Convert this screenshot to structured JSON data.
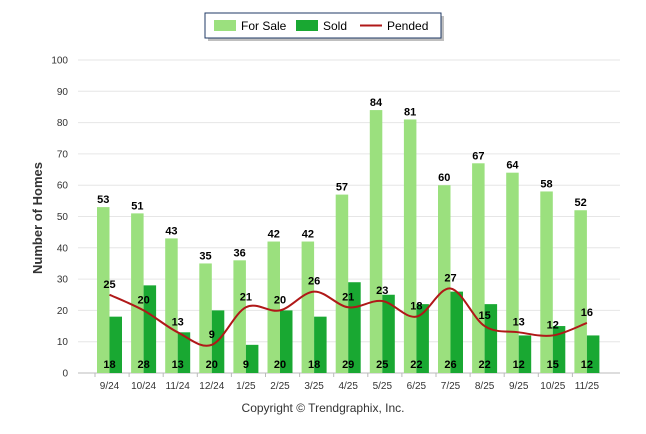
{
  "chart_data": {
    "type": "bar",
    "title": "",
    "xlabel": "",
    "ylabel": "Number of Homes",
    "ylim": [
      0,
      100
    ],
    "yticks": [
      0,
      10,
      20,
      30,
      40,
      50,
      60,
      70,
      80,
      90,
      100
    ],
    "categories": [
      "9/24",
      "10/24",
      "11/24",
      "12/24",
      "1/25",
      "2/25",
      "3/25",
      "4/25",
      "5/25",
      "6/25",
      "7/25",
      "8/25",
      "9/25",
      "10/25",
      "11/25"
    ],
    "series": [
      {
        "name": "For Sale",
        "type": "bar",
        "color": "#9be07e",
        "values": [
          53,
          51,
          43,
          35,
          36,
          42,
          42,
          57,
          84,
          81,
          60,
          67,
          64,
          58,
          52
        ]
      },
      {
        "name": "Sold",
        "type": "bar",
        "color": "#19a832",
        "values": [
          18,
          28,
          13,
          20,
          9,
          20,
          18,
          29,
          25,
          22,
          26,
          22,
          12,
          15,
          12
        ]
      },
      {
        "name": "Pended",
        "type": "line",
        "color": "#b01818",
        "values": [
          25,
          20,
          13,
          9,
          21,
          20,
          26,
          21,
          23,
          18,
          27,
          15,
          13,
          12,
          16
        ]
      }
    ],
    "legend": {
      "position": "top-center"
    }
  },
  "footer": {
    "copyright": "Copyright © Trendgraphix, Inc."
  }
}
